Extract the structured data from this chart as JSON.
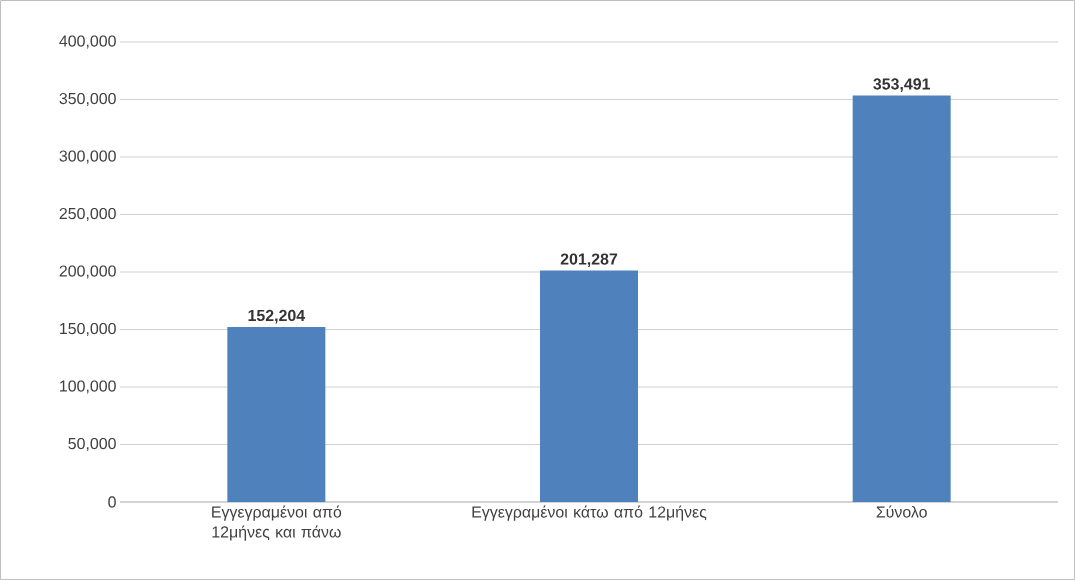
{
  "chart_data": {
    "type": "bar",
    "categories": [
      "Εγγεγραμένοι από 12μήνες και πάνω",
      "Εγγεγραμένοι κάτω από 12μήνες",
      "Σύνολο"
    ],
    "values": [
      152204,
      201287,
      353491
    ],
    "value_labels": [
      "152,204",
      "201,287",
      "353,491"
    ],
    "color": "#4f81bd",
    "ylim": [
      0,
      400000
    ],
    "yticks": [
      {
        "value": 0,
        "label": "0"
      },
      {
        "value": 50000,
        "label": "50,000"
      },
      {
        "value": 100000,
        "label": "100,000"
      },
      {
        "value": 150000,
        "label": "150,000"
      },
      {
        "value": 200000,
        "label": "200,000"
      },
      {
        "value": 250000,
        "label": "250,000"
      },
      {
        "value": 300000,
        "label": "300,000"
      },
      {
        "value": 350000,
        "label": "350,000"
      },
      {
        "value": 400000,
        "label": "400,000"
      }
    ],
    "grid": "y"
  }
}
